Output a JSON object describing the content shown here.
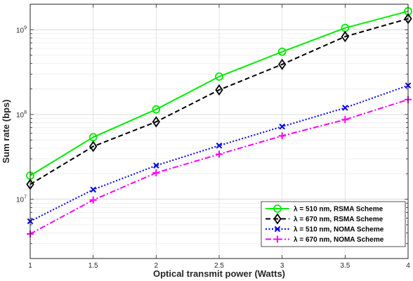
{
  "chart_data": {
    "type": "line",
    "xlabel": "Optical transmit power (Watts)",
    "ylabel": "Sum rate (bps)",
    "yscale": "log",
    "xlim": [
      1,
      4
    ],
    "ylim": [
      2000000,
      2000000000
    ],
    "grid": true,
    "legend_position": "bottom-right",
    "x": [
      1,
      1.5,
      2,
      2.5,
      3,
      3.5,
      4
    ],
    "x_tick_labels": [
      "1",
      "1.5",
      "2",
      "2.5",
      "3",
      "3.5",
      "4"
    ],
    "y_ticks": [
      {
        "base": "10",
        "exp": "7",
        "value": 10000000
      },
      {
        "base": "10",
        "exp": "8",
        "value": 100000000
      },
      {
        "base": "10",
        "exp": "9",
        "value": 1000000000
      }
    ],
    "series": [
      {
        "name": "λ = 510 nm, RSMA Scheme",
        "color": "#00ee00",
        "dash": "solid",
        "marker": "circle",
        "values": [
          19000000,
          54000000,
          115000000,
          280000000,
          550000000,
          1050000000,
          1650000000
        ]
      },
      {
        "name": "λ = 670 nm, RSMA Scheme",
        "color": "#000000",
        "dash": "dashed",
        "marker": "diamond",
        "values": [
          15000000,
          42000000,
          82000000,
          195000000,
          390000000,
          830000000,
          1350000000
        ]
      },
      {
        "name": "λ = 510 nm, NOMA Scheme",
        "color": "#0000ee",
        "dash": "dotted",
        "marker": "x",
        "values": [
          5500000,
          13000000,
          25000000,
          43000000,
          72000000,
          120000000,
          220000000
        ]
      },
      {
        "name": "λ = 670 nm, NOMA Scheme",
        "color": "#ff00ff",
        "dash": "dashdot",
        "marker": "plus",
        "values": [
          3900000,
          9800000,
          20500000,
          34000000,
          56000000,
          87000000,
          150000000
        ]
      }
    ]
  }
}
